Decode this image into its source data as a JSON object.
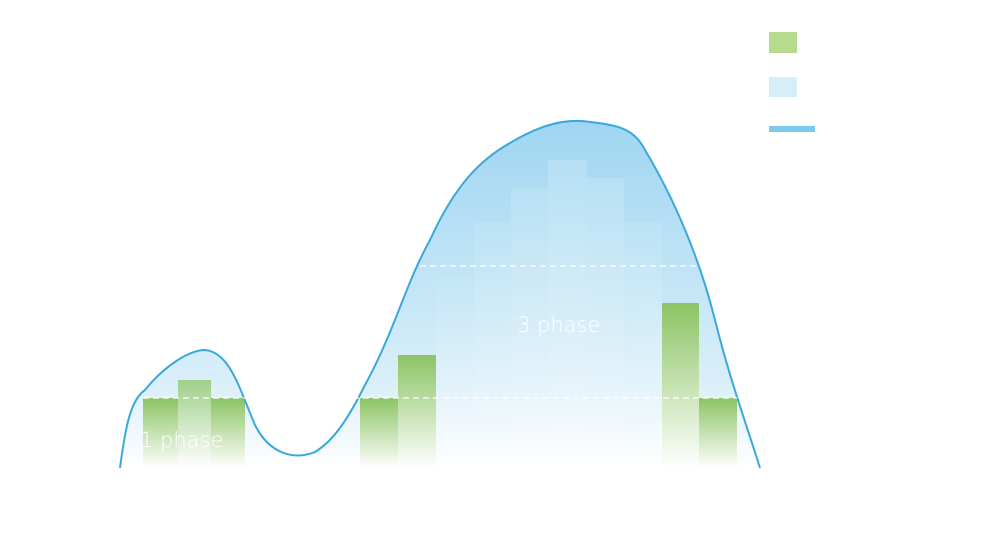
{
  "annotations": [
    "1 phase",
    "3 phase"
  ]
}
